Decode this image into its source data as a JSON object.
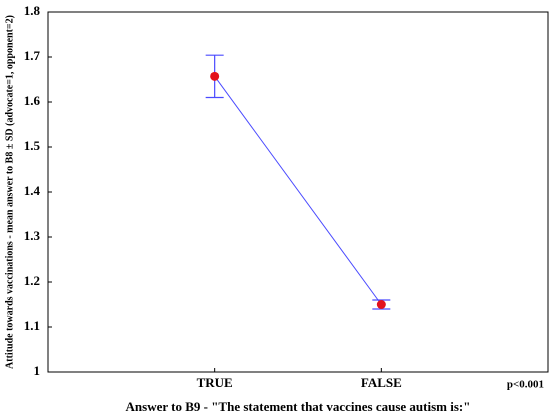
{
  "chart_data": {
    "type": "line",
    "ylabel": "Attitude towards vaccinations - mean answer to B8 ± SD (advocate=1, opponent=2)",
    "xlabel": "Answer to B9 - \"The statement that vaccines cause autism is:\"",
    "annotation": "p<0.001",
    "categories": [
      "TRUE",
      "FALSE"
    ],
    "values": [
      1.657,
      1.15
    ],
    "errors": [
      0.047,
      0.01
    ],
    "color": "#4a4aff",
    "marker_color": "#e3121d",
    "error_color": "#4a4aff",
    "ylim": [
      1,
      1.8
    ],
    "yticks": [
      1,
      1.1,
      1.2,
      1.3,
      1.4,
      1.5,
      1.6,
      1.7,
      1.8
    ],
    "grid": false
  }
}
